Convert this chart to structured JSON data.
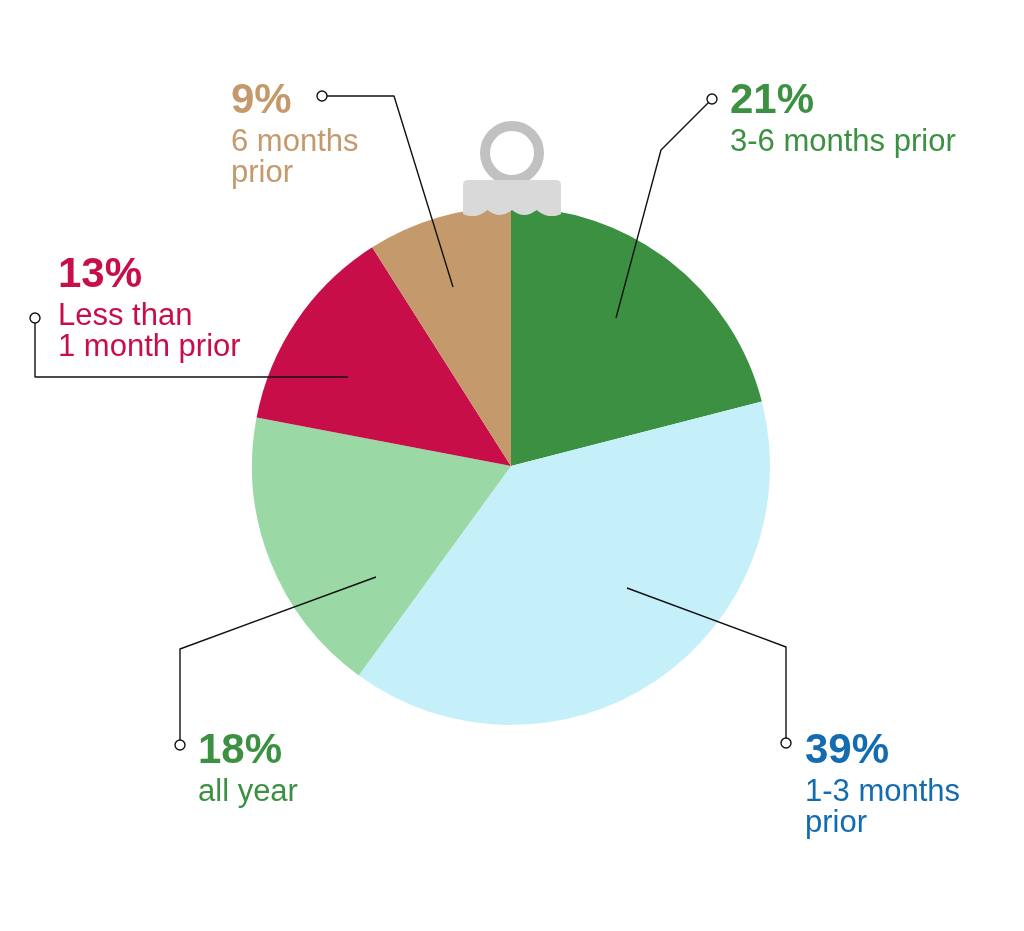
{
  "chart_data": {
    "type": "pie",
    "categories": [
      "3-6 months prior",
      "1-3 months prior",
      "all year",
      "Less than 1 month prior",
      "6 months prior"
    ],
    "values": [
      21,
      39,
      18,
      13,
      9
    ],
    "colors": [
      "#3c9042",
      "#c6f0f9",
      "#9ad9a5",
      "#c80e48",
      "#c49a6c"
    ],
    "value_labels": [
      "21%",
      "39%",
      "18%",
      "13%",
      "9%"
    ],
    "legend": false
  }
}
